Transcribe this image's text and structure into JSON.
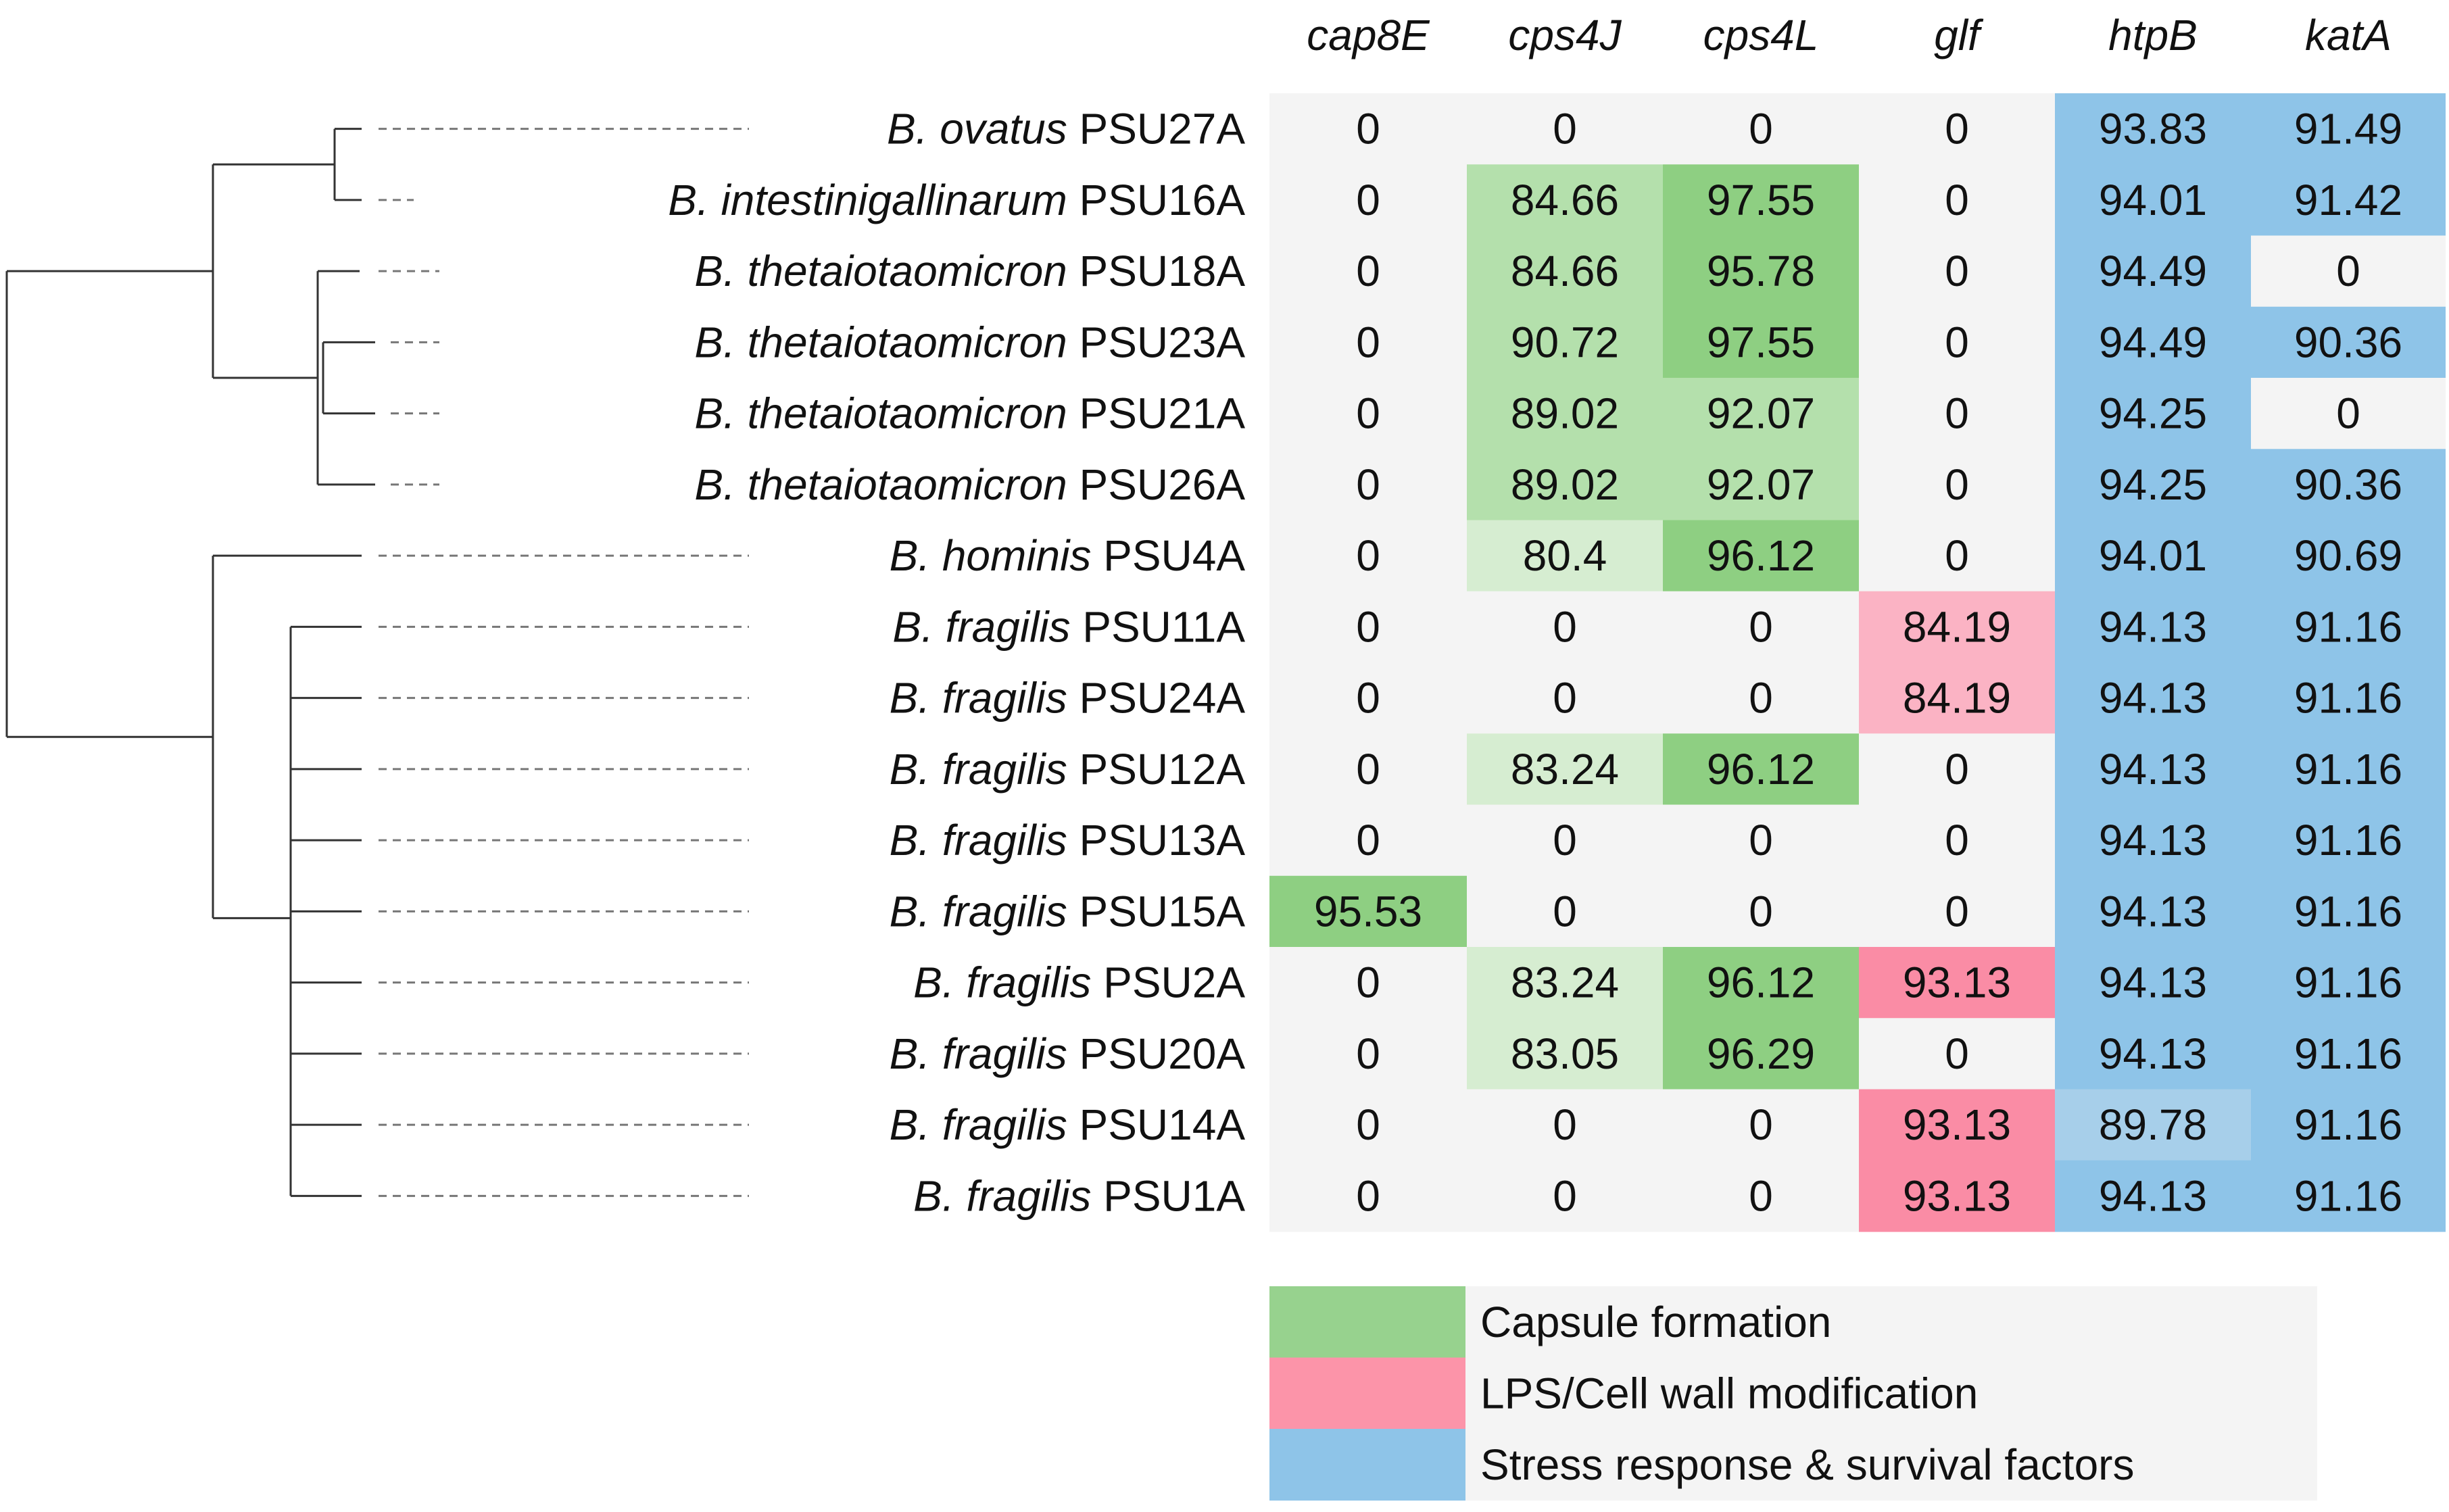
{
  "chart_data": {
    "type": "heatmap",
    "title": "",
    "columns": [
      "cap8E",
      "cps4J",
      "cps4L",
      "glf",
      "htpB",
      "katA"
    ],
    "column_categories": [
      "Capsule formation",
      "Capsule formation",
      "Capsule formation",
      "LPS/Cell wall modification",
      "Stress response & survival factors",
      "Stress response & survival factors"
    ],
    "rows": [
      {
        "genus": "B.",
        "species": "ovatus",
        "strain": "PSU27A",
        "values": [
          "0",
          "0",
          "0",
          "0",
          "93.83",
          "91.49"
        ]
      },
      {
        "genus": "B.",
        "species": "intestinigallinarum",
        "strain": "PSU16A",
        "values": [
          "0",
          "84.66",
          "97.55",
          "0",
          "94.01",
          "91.42"
        ]
      },
      {
        "genus": "B.",
        "species": "thetaiotaomicron",
        "strain": "PSU18A",
        "values": [
          "0",
          "84.66",
          "95.78",
          "0",
          "94.49",
          "0"
        ]
      },
      {
        "genus": "B.",
        "species": "thetaiotaomicron",
        "strain": "PSU23A",
        "values": [
          "0",
          "90.72",
          "97.55",
          "0",
          "94.49",
          "90.36"
        ]
      },
      {
        "genus": "B.",
        "species": "thetaiotaomicron",
        "strain": "PSU21A",
        "values": [
          "0",
          "89.02",
          "92.07",
          "0",
          "94.25",
          "0"
        ]
      },
      {
        "genus": "B.",
        "species": "thetaiotaomicron",
        "strain": "PSU26A",
        "values": [
          "0",
          "89.02",
          "92.07",
          "0",
          "94.25",
          "90.36"
        ]
      },
      {
        "genus": "B.",
        "species": "hominis",
        "strain": "PSU4A",
        "values": [
          "0",
          "80.4",
          "96.12",
          "0",
          "94.01",
          "90.69"
        ]
      },
      {
        "genus": "B.",
        "species": "fragilis",
        "strain": "PSU11A",
        "values": [
          "0",
          "0",
          "0",
          "84.19",
          "94.13",
          "91.16"
        ]
      },
      {
        "genus": "B.",
        "species": "fragilis",
        "strain": "PSU24A",
        "values": [
          "0",
          "0",
          "0",
          "84.19",
          "94.13",
          "91.16"
        ]
      },
      {
        "genus": "B.",
        "species": "fragilis",
        "strain": "PSU12A",
        "values": [
          "0",
          "83.24",
          "96.12",
          "0",
          "94.13",
          "91.16"
        ]
      },
      {
        "genus": "B.",
        "species": "fragilis",
        "strain": "PSU13A",
        "values": [
          "0",
          "0",
          "0",
          "0",
          "94.13",
          "91.16"
        ]
      },
      {
        "genus": "B.",
        "species": "fragilis",
        "strain": "PSU15A",
        "values": [
          "95.53",
          "0",
          "0",
          "0",
          "94.13",
          "91.16"
        ]
      },
      {
        "genus": "B.",
        "species": "fragilis",
        "strain": "PSU2A",
        "values": [
          "0",
          "83.24",
          "96.12",
          "93.13",
          "94.13",
          "91.16"
        ]
      },
      {
        "genus": "B.",
        "species": "fragilis",
        "strain": "PSU20A",
        "values": [
          "0",
          "83.05",
          "96.29",
          "0",
          "94.13",
          "91.16"
        ]
      },
      {
        "genus": "B.",
        "species": "fragilis",
        "strain": "PSU14A",
        "values": [
          "0",
          "0",
          "0",
          "93.13",
          "89.78",
          "91.16"
        ]
      },
      {
        "genus": "B.",
        "species": "fragilis",
        "strain": "PSU1A",
        "values": [
          "0",
          "0",
          "0",
          "93.13",
          "94.13",
          "91.16"
        ]
      }
    ],
    "legend": [
      {
        "label": "Capsule formation",
        "color": "#97d28e"
      },
      {
        "label": "LPS/Cell wall modification",
        "color": "#fc94a9"
      },
      {
        "label": "Stress response & survival factors",
        "color": "#8ec4e8"
      }
    ],
    "colors": {
      "empty": "#f4f4f4",
      "green_light": "#d6edd1",
      "green_mid": "#b4e0ac",
      "green_dark": "#8ecf82",
      "pink_light": "#fbb3c4",
      "pink_dark": "#fa8ca5",
      "blue_light": "#a7cfea",
      "blue_dark": "#8ec4e8"
    },
    "tree_note": "dendrogram on left groups B. fragilis strains, B. hominis, and B. thetaiotaomicron / B. ovatus / B. intestinigallinarum clades"
  }
}
